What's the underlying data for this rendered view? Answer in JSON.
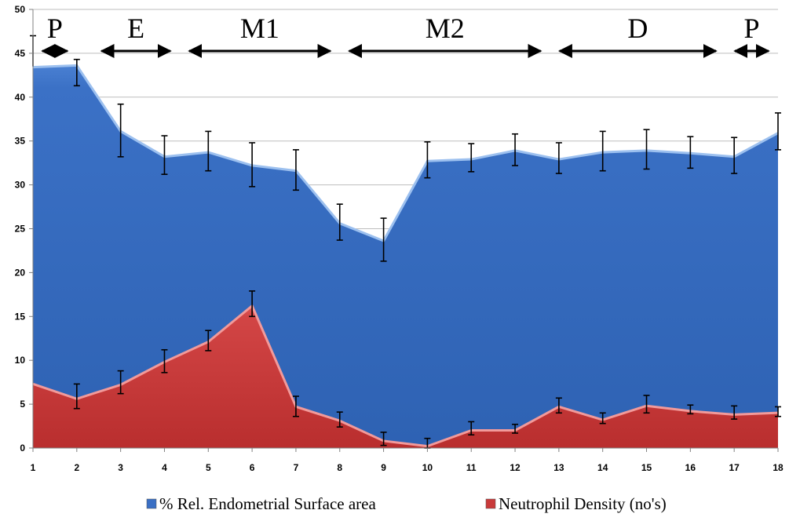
{
  "chart_data": {
    "type": "area",
    "categories": [
      1,
      2,
      3,
      4,
      5,
      6,
      7,
      8,
      9,
      10,
      11,
      12,
      13,
      14,
      15,
      16,
      17,
      18
    ],
    "ylim": [
      0,
      50
    ],
    "yticks": [
      0,
      5,
      10,
      15,
      20,
      25,
      30,
      35,
      40,
      45,
      50
    ],
    "grid": true,
    "legend_position": "bottom",
    "series": [
      {
        "name": "% Rel. Endometrial Surface area",
        "color": "#3a6fc4",
        "values": [
          43.5,
          43.7,
          36.2,
          33.3,
          33.8,
          32.3,
          31.7,
          25.7,
          23.7,
          32.8,
          33.0,
          34.0,
          33.0,
          33.8,
          34.0,
          33.7,
          33.3,
          36.0
        ],
        "err_low": [
          null,
          41.3,
          33.2,
          31.2,
          31.6,
          29.8,
          29.4,
          23.7,
          21.3,
          30.8,
          31.5,
          32.2,
          31.3,
          31.6,
          31.8,
          31.9,
          31.3,
          34.0
        ],
        "err_high": [
          47.0,
          44.3,
          39.2,
          35.6,
          36.1,
          34.8,
          34.0,
          27.8,
          26.2,
          34.9,
          34.7,
          35.8,
          34.8,
          36.1,
          36.3,
          35.5,
          35.4,
          38.2
        ]
      },
      {
        "name": "Neutrophil Density (no's)",
        "color": "#c93a3a",
        "values": [
          7.4,
          5.7,
          7.3,
          9.9,
          12.2,
          16.3,
          4.8,
          3.2,
          0.9,
          0.3,
          2.1,
          2.1,
          4.8,
          3.3,
          4.9,
          4.3,
          3.9,
          4.1
        ],
        "err_low": [
          null,
          4.5,
          6.2,
          8.6,
          11.1,
          15.0,
          3.6,
          2.4,
          0.3,
          0.0,
          1.5,
          1.7,
          4.0,
          2.8,
          4.0,
          3.9,
          3.3,
          3.6
        ],
        "err_high": [
          null,
          7.3,
          8.8,
          11.2,
          13.4,
          17.9,
          5.9,
          4.1,
          1.8,
          1.1,
          3.0,
          2.7,
          5.7,
          4.0,
          6.0,
          4.9,
          4.8,
          4.7
        ]
      }
    ],
    "phases": [
      {
        "label": "P",
        "from": 1,
        "to": 2
      },
      {
        "label": "E",
        "from": 2.35,
        "to": 4.35
      },
      {
        "label": "M1",
        "from": 4.35,
        "to": 8.0
      },
      {
        "label": "M2",
        "from": 8.0,
        "to": 12.8
      },
      {
        "label": "D",
        "from": 12.8,
        "to": 16.8
      },
      {
        "label": "P",
        "from": 16.8,
        "to": 18
      }
    ]
  }
}
